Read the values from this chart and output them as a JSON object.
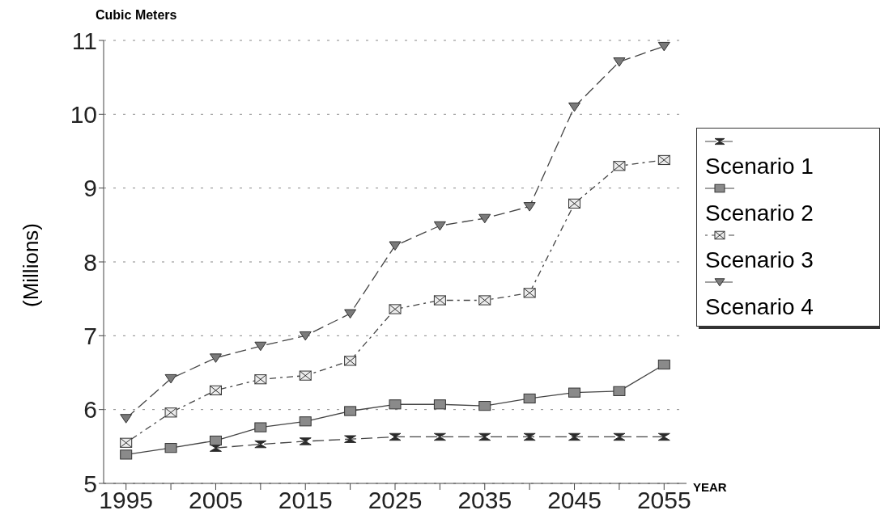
{
  "chart_data": {
    "type": "line",
    "title": "Cubic Meters",
    "ylabel": "(Millions)",
    "xlabel": "YEAR",
    "x": [
      1995,
      2000,
      2005,
      2010,
      2015,
      2020,
      2025,
      2030,
      2035,
      2040,
      2045,
      2050,
      2055
    ],
    "series": [
      {
        "name": "Scenario 1",
        "color": "#2a2a2a",
        "marker": "diamond",
        "line_style": "dashed",
        "values": [
          null,
          null,
          5.48,
          5.53,
          5.57,
          5.6,
          5.63,
          5.63,
          5.63,
          5.63,
          5.63,
          5.63,
          5.63
        ]
      },
      {
        "name": "Scenario 2",
        "color": "#8a8a8a",
        "marker": "square",
        "line_style": "solid",
        "values": [
          5.39,
          5.48,
          5.58,
          5.76,
          5.84,
          5.98,
          6.07,
          6.07,
          6.05,
          6.15,
          6.23,
          6.25,
          6.61
        ]
      },
      {
        "name": "Scenario 3",
        "color": "#ececec",
        "marker": "square",
        "line_style": "dotted",
        "values": [
          5.55,
          5.96,
          6.26,
          6.41,
          6.46,
          6.66,
          7.36,
          7.48,
          7.48,
          7.58,
          8.79,
          9.3,
          9.38
        ]
      },
      {
        "name": "Scenario 4",
        "color": "#7a7a7a",
        "marker": "triangle",
        "line_style": "dashed",
        "values": [
          5.88,
          6.42,
          6.7,
          6.86,
          7.0,
          7.3,
          8.22,
          8.49,
          8.59,
          8.75,
          10.1,
          10.71,
          10.92
        ]
      }
    ],
    "xlim": [
      1992.5,
      2057.5
    ],
    "xticks": [
      1995,
      {
        "value": 2000,
        "label": null
      },
      2005,
      {
        "value": 2010,
        "label": null
      },
      2015,
      {
        "value": 2020,
        "label": null
      },
      2025,
      {
        "value": 2030,
        "label": null
      },
      2035,
      {
        "value": 2040,
        "label": null
      },
      2045,
      {
        "value": 2050,
        "label": null
      },
      2055
    ],
    "ylim": [
      5,
      11
    ],
    "yticks": [
      5,
      6,
      7,
      8,
      9,
      10,
      11
    ],
    "grid": "y",
    "legend": "right"
  }
}
